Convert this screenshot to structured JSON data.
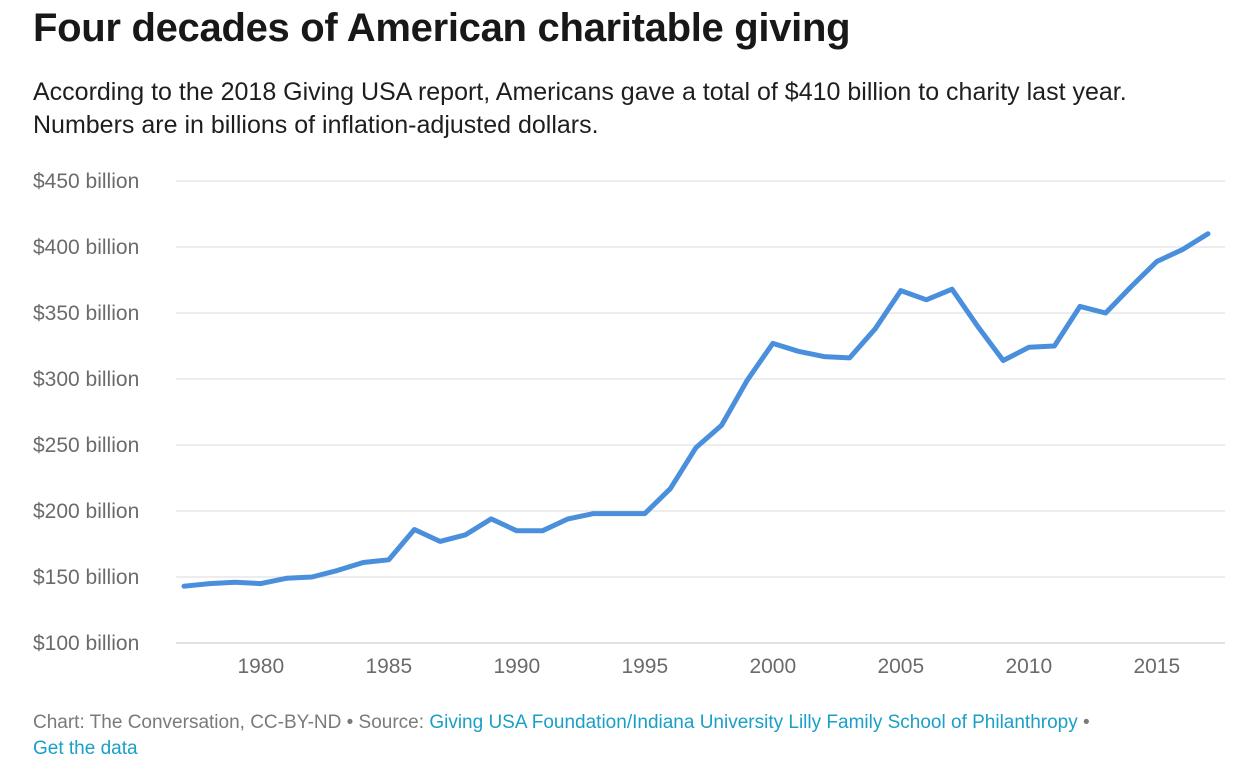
{
  "header": {
    "title": "Four decades of American charitable giving",
    "subtitle": "According to the 2018 Giving USA report, Americans gave a total of $410 billion to charity last year. Numbers are in billions of inflation-adjusted dollars."
  },
  "chart_data": {
    "type": "line",
    "title": "Four decades of American charitable giving",
    "xlabel": "",
    "ylabel": "",
    "ylim": [
      100,
      450
    ],
    "xlim": [
      1977,
      2017
    ],
    "grid": true,
    "line_color": "#4a8fdc",
    "y_ticks": [
      {
        "value": 100,
        "label": "$100 billion"
      },
      {
        "value": 150,
        "label": "$150 billion"
      },
      {
        "value": 200,
        "label": "$200 billion"
      },
      {
        "value": 250,
        "label": "$250 billion"
      },
      {
        "value": 300,
        "label": "$300 billion"
      },
      {
        "value": 350,
        "label": "$350 billion"
      },
      {
        "value": 400,
        "label": "$400 billion"
      },
      {
        "value": 450,
        "label": "$450 billion"
      }
    ],
    "x_ticks": [
      {
        "value": 1980,
        "label": "1980"
      },
      {
        "value": 1985,
        "label": "1985"
      },
      {
        "value": 1990,
        "label": "1990"
      },
      {
        "value": 1995,
        "label": "1995"
      },
      {
        "value": 2000,
        "label": "2000"
      },
      {
        "value": 2005,
        "label": "2005"
      },
      {
        "value": 2010,
        "label": "2010"
      },
      {
        "value": 2015,
        "label": "2015"
      }
    ],
    "series": [
      {
        "x": [
          1977,
          1978,
          1979,
          1980,
          1981,
          1982,
          1983,
          1984,
          1985,
          1986,
          1987,
          1988,
          1989,
          1990,
          1991,
          1992,
          1993,
          1994,
          1995,
          1996,
          1997,
          1998,
          1999,
          2000,
          2001,
          2002,
          2003,
          2004,
          2005,
          2006,
          2007,
          2008,
          2009,
          2010,
          2011,
          2012,
          2013,
          2014,
          2015,
          2016,
          2017
        ],
        "values": [
          143,
          145,
          146,
          145,
          149,
          150,
          155,
          161,
          163,
          186,
          177,
          182,
          194,
          185,
          185,
          194,
          198,
          198,
          198,
          217,
          248,
          265,
          299,
          327,
          321,
          317,
          316,
          338,
          367,
          360,
          368,
          340,
          314,
          324,
          325,
          355,
          350,
          370,
          389,
          398,
          410
        ]
      }
    ]
  },
  "footer": {
    "credit": "Chart: The Conversation, CC-BY-ND • Source: ",
    "source_link": "Giving USA Foundation/Indiana University Lilly Family School of Philanthropy",
    "separator": " • ",
    "data_link": "Get the data"
  }
}
